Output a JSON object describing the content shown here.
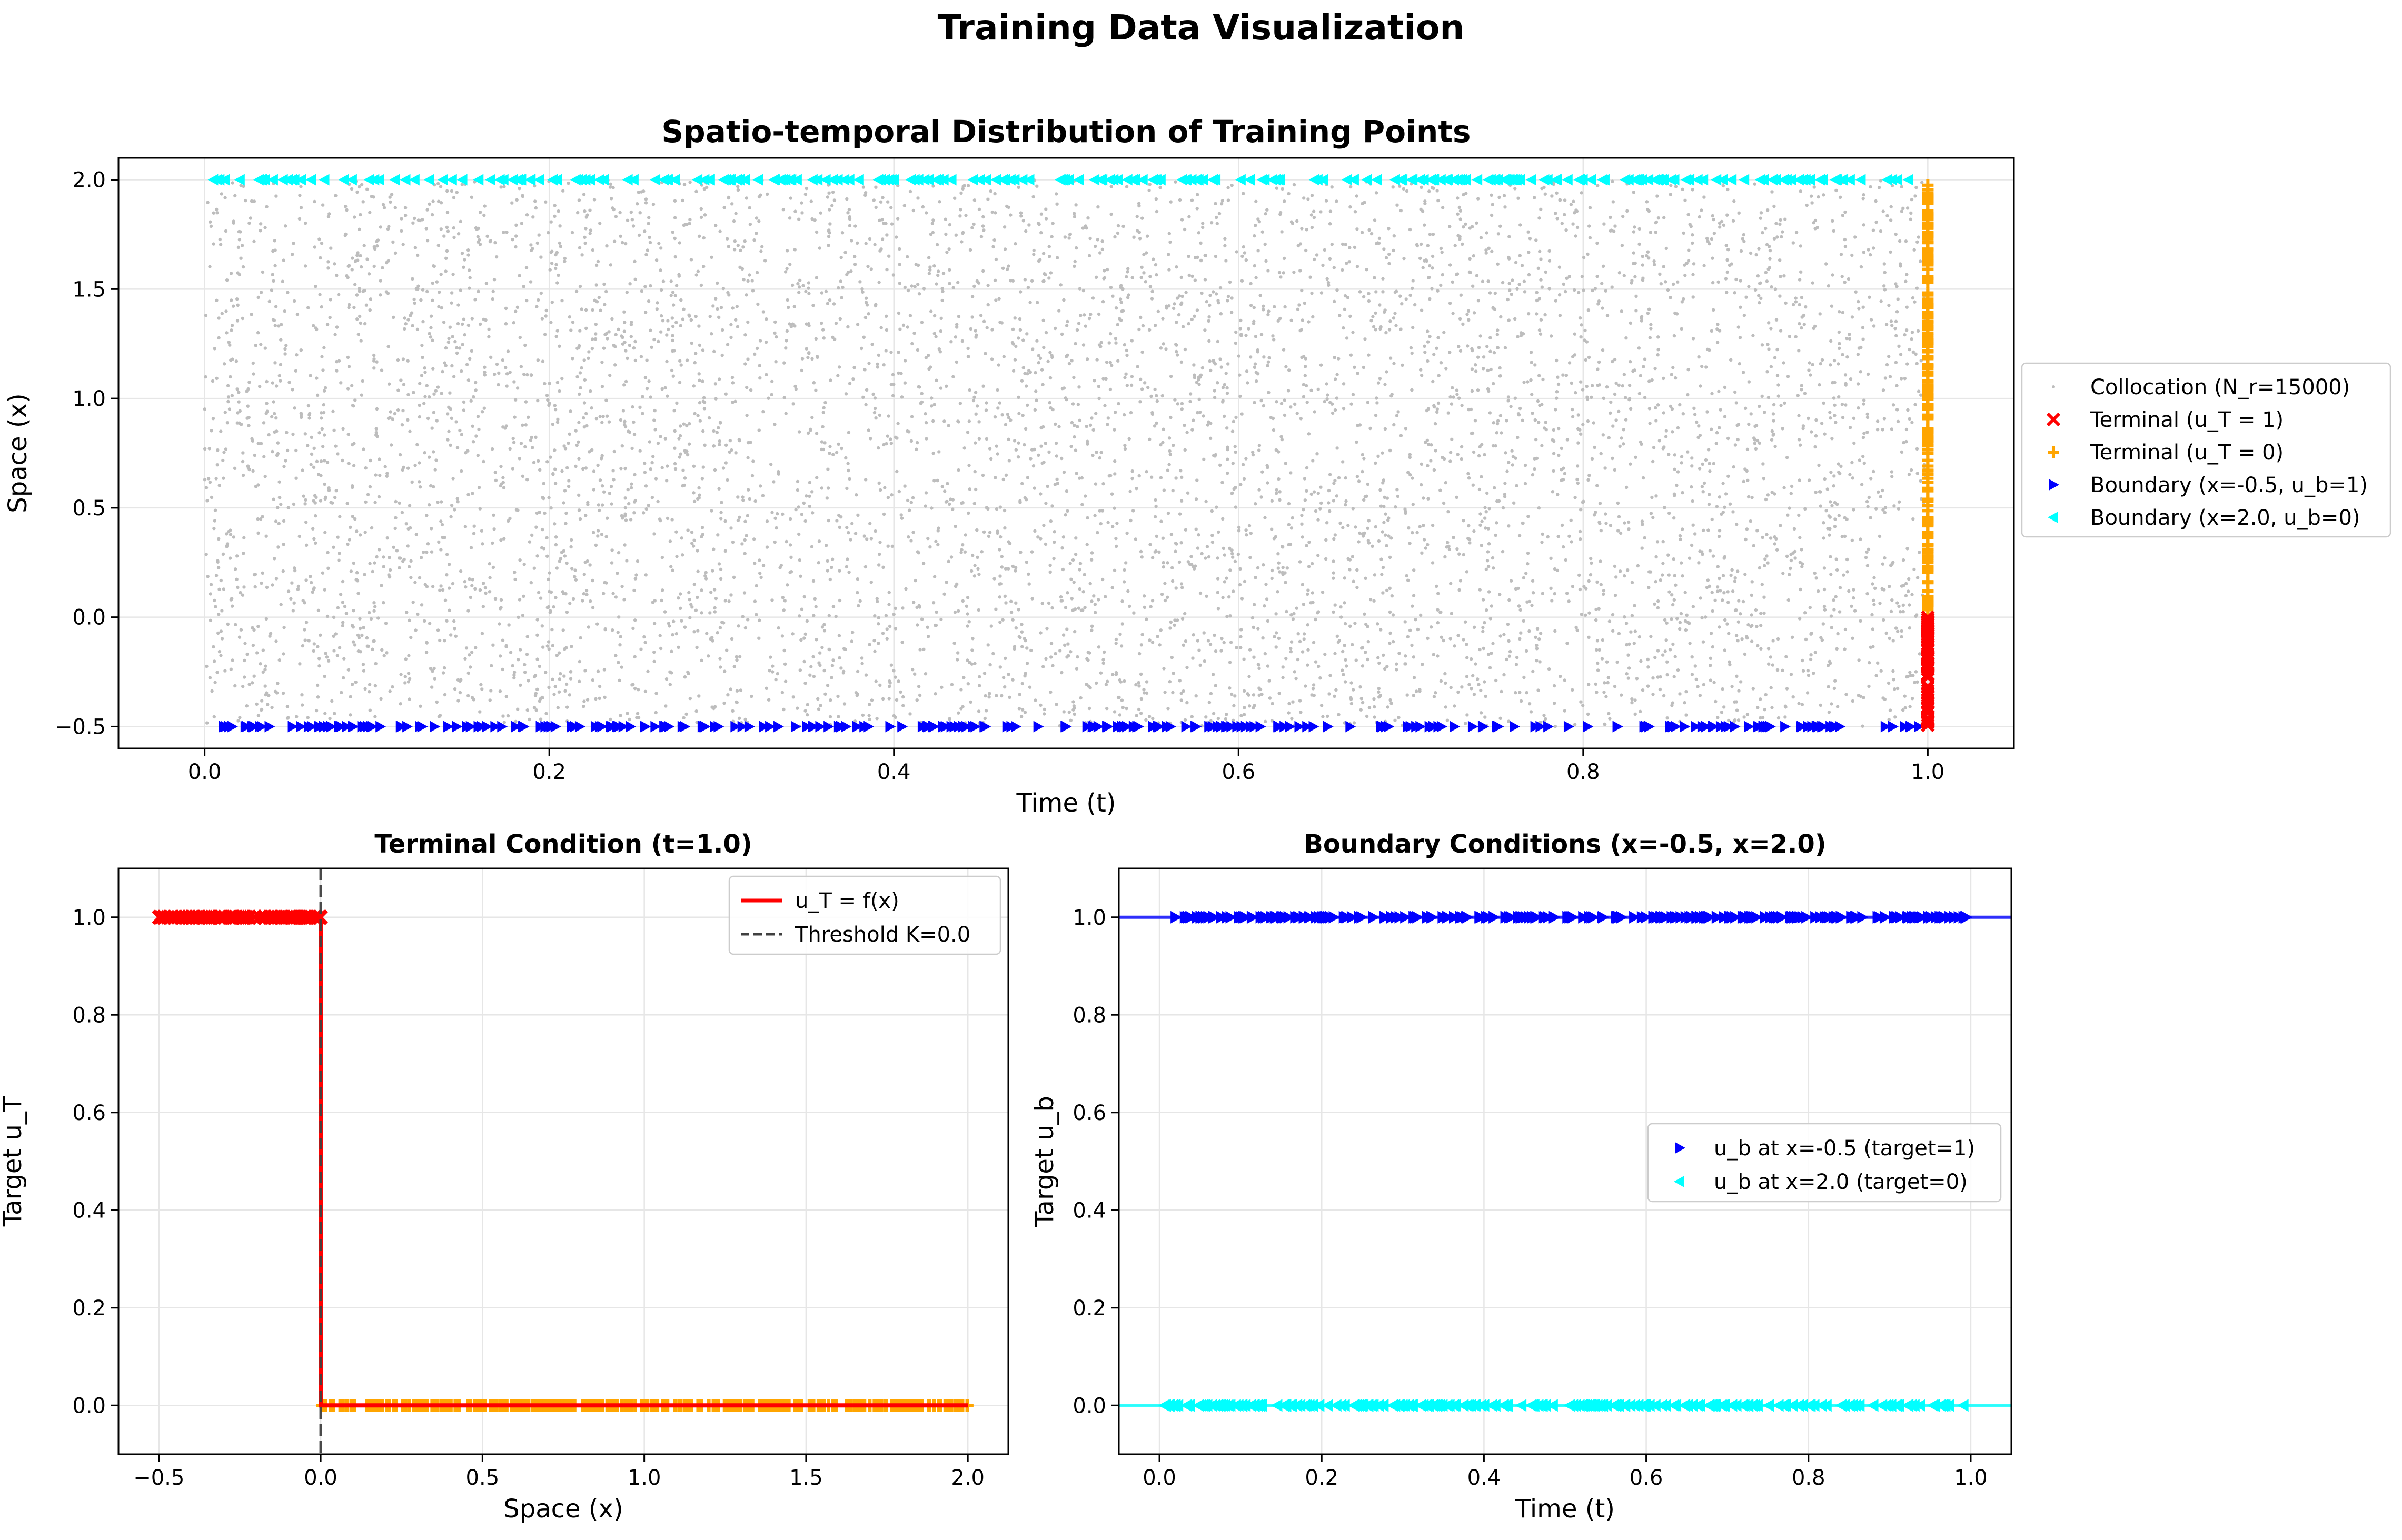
{
  "suptitle": "Training Data Visualization",
  "chart_data": [
    {
      "id": "spatiotemporal",
      "type": "scatter",
      "title": "Spatio-temporal Distribution of Training Points",
      "xlabel": "Time (t)",
      "ylabel": "Space (x)",
      "xlim": [
        -0.05,
        1.05
      ],
      "ylim": [
        -0.6,
        2.1
      ],
      "xticks": [
        0.0,
        0.2,
        0.4,
        0.6,
        0.8,
        1.0
      ],
      "xtick_labels": [
        "0.0",
        "0.2",
        "0.4",
        "0.6",
        "0.8",
        "1.0"
      ],
      "yticks": [
        -0.5,
        0.0,
        0.5,
        1.0,
        1.5,
        2.0
      ],
      "ytick_labels": [
        "−0.5",
        "0.0",
        "0.5",
        "1.0",
        "1.5",
        "2.0"
      ],
      "grid": true,
      "legend_position": "outside-right",
      "series": [
        {
          "name": "Collocation (N_r=15000)",
          "marker": "dot",
          "color": "#bdbdbd",
          "n_points": 15000,
          "t_range": [
            0.0,
            1.0
          ],
          "x_range": [
            -0.5,
            2.0
          ]
        },
        {
          "name": "Terminal (u_T = 1)",
          "marker": "x",
          "color": "#ff0000",
          "t": 1.0,
          "x_range": [
            -0.5,
            0.0
          ]
        },
        {
          "name": "Terminal (u_T = 0)",
          "marker": "plus",
          "color": "#ffa500",
          "t": 1.0,
          "x_range": [
            0.0,
            2.0
          ]
        },
        {
          "name": "Boundary (x=-0.5, u_b=1)",
          "marker": "triangle-right",
          "color": "#0000ff",
          "x": -0.5,
          "t_range": [
            0.0,
            1.0
          ]
        },
        {
          "name": "Boundary (x=2.0, u_b=0)",
          "marker": "triangle-left",
          "color": "#00ffff",
          "x": 2.0,
          "t_range": [
            0.0,
            1.0
          ]
        }
      ]
    },
    {
      "id": "terminal",
      "type": "line",
      "title": "Terminal Condition (t=1.0)",
      "xlabel": "Space (x)",
      "ylabel": "Target u_T",
      "xlim": [
        -0.625,
        2.125
      ],
      "ylim": [
        -0.1,
        1.1
      ],
      "xticks": [
        -0.5,
        0.0,
        0.5,
        1.0,
        1.5,
        2.0
      ],
      "xtick_labels": [
        "−0.5",
        "0.0",
        "0.5",
        "1.0",
        "1.5",
        "2.0"
      ],
      "yticks": [
        0.0,
        0.2,
        0.4,
        0.6,
        0.8,
        1.0
      ],
      "ytick_labels": [
        "0.0",
        "0.2",
        "0.4",
        "0.6",
        "0.8",
        "1.0"
      ],
      "grid": true,
      "legend_position": "upper right",
      "series": [
        {
          "name": "u_T = f(x)",
          "style": "line",
          "color": "#ff0000",
          "x": [
            -0.5,
            0.0,
            0.0,
            2.0
          ],
          "y": [
            1.0,
            1.0,
            0.0,
            0.0
          ]
        },
        {
          "name": "Threshold K=0.0",
          "style": "dashed",
          "color": "#404040",
          "x": 0.0
        }
      ],
      "marker_series": [
        {
          "marker": "x",
          "color": "#ff0000",
          "x_range": [
            -0.5,
            0.0
          ],
          "y": 1.0
        },
        {
          "marker": "plus",
          "color": "#ffa500",
          "x_range": [
            0.0,
            2.0
          ],
          "y": 0.0
        }
      ]
    },
    {
      "id": "boundary",
      "type": "scatter",
      "title": "Boundary Conditions (x=-0.5, x=2.0)",
      "xlabel": "Time (t)",
      "ylabel": "Target u_b",
      "xlim": [
        -0.05,
        1.05
      ],
      "ylim": [
        -0.1,
        1.1
      ],
      "xticks": [
        0.0,
        0.2,
        0.4,
        0.6,
        0.8,
        1.0
      ],
      "xtick_labels": [
        "0.0",
        "0.2",
        "0.4",
        "0.6",
        "0.8",
        "1.0"
      ],
      "yticks": [
        0.0,
        0.2,
        0.4,
        0.6,
        0.8,
        1.0
      ],
      "ytick_labels": [
        "0.0",
        "0.2",
        "0.4",
        "0.6",
        "0.8",
        "1.0"
      ],
      "grid": true,
      "legend_position": "center right",
      "series": [
        {
          "name": "u_b at x=-0.5 (target=1)",
          "marker": "triangle-right",
          "color": "#0000ff",
          "y": 1.0,
          "t_range": [
            0.0,
            1.0
          ]
        },
        {
          "name": "u_b at x=2.0 (target=0)",
          "marker": "triangle-left",
          "color": "#00ffff",
          "y": 0.0,
          "t_range": [
            0.0,
            1.0
          ]
        }
      ]
    }
  ]
}
